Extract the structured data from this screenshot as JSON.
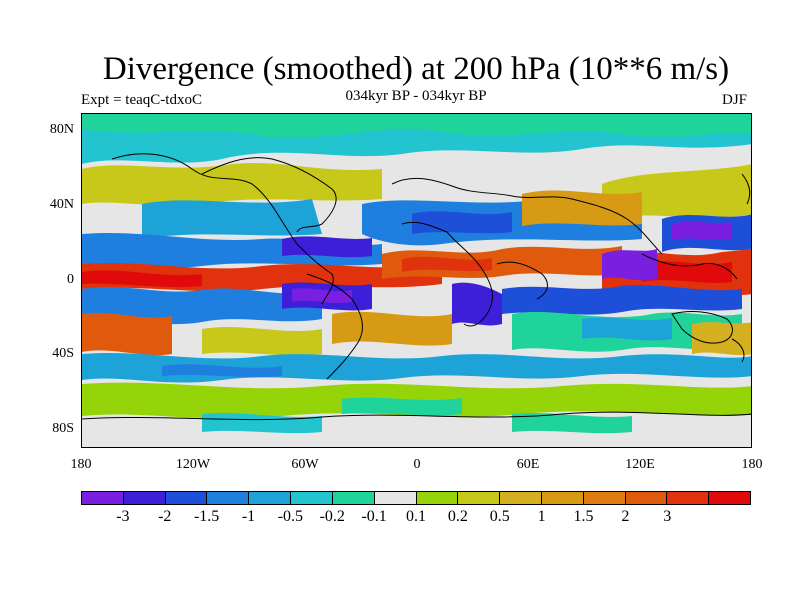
{
  "title": "Divergence (smoothed) at 200 hPa (10**6 m/s)",
  "experiment": "Expt = teaqC-tdxoC",
  "period": "034kyr BP - 034kyr BP",
  "season": "DJF",
  "lat_labels": [
    "80N",
    "40N",
    "0",
    "40S",
    "80S"
  ],
  "lon_labels": [
    "180",
    "120W",
    "60W",
    "0",
    "60E",
    "120E",
    "180"
  ],
  "colorbar": {
    "colors": [
      "#7a1fe0",
      "#3c1fd6",
      "#1e4fd8",
      "#1f7fde",
      "#1ea3d9",
      "#21c4cf",
      "#1fd39a",
      "#e6e6e6",
      "#96d40a",
      "#c8c81a",
      "#d4b020",
      "#d69a14",
      "#de7c12",
      "#e05a0e",
      "#e0320c",
      "#e00a0a"
    ],
    "labels": [
      "-3",
      "-2",
      "-1.5",
      "-1",
      "-0.5",
      "-0.2",
      "-0.1",
      "0.1",
      "0.2",
      "0.5",
      "1",
      "1.5",
      "2",
      "3"
    ]
  }
}
